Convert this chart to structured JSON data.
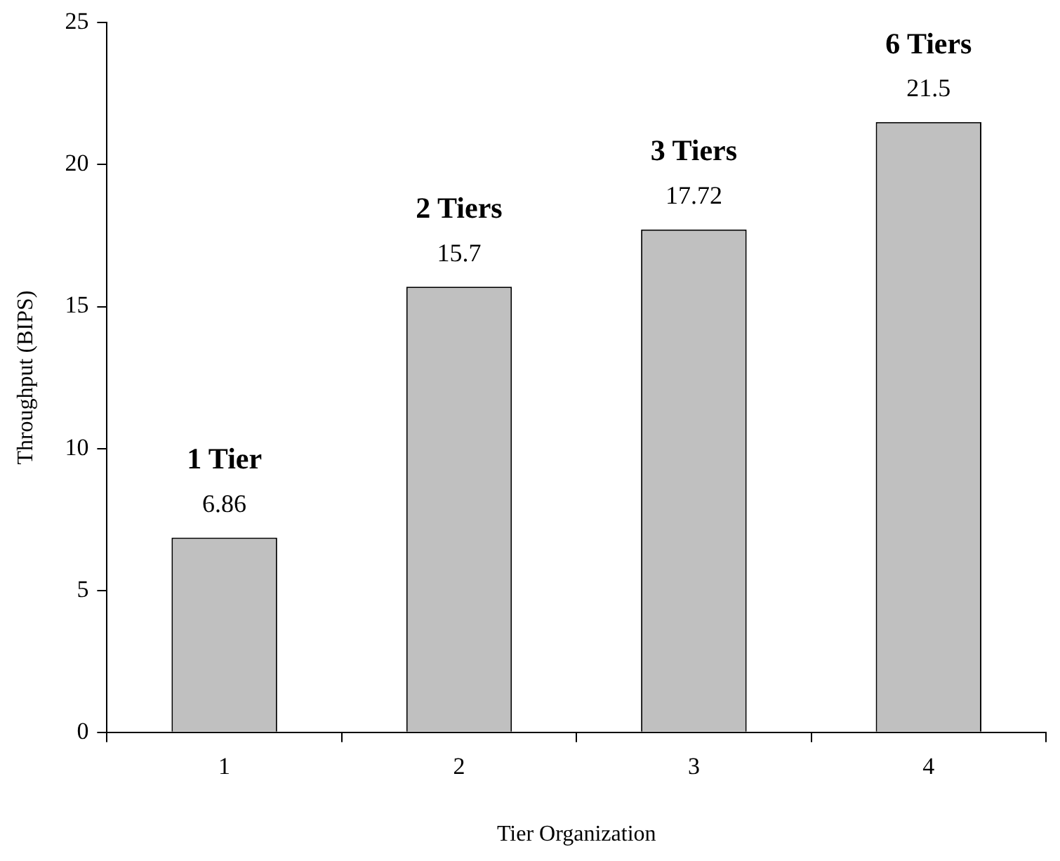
{
  "chart_data": {
    "type": "bar",
    "xlabel": "Tier Organization",
    "ylabel": "Throughput (BIPS)",
    "categories": [
      "1",
      "2",
      "3",
      "4"
    ],
    "values": [
      6.86,
      15.7,
      17.72,
      21.5
    ],
    "color": "#c0c0c0",
    "ylim": [
      0,
      25
    ],
    "yticks": [
      0,
      5,
      10,
      15,
      20,
      25
    ],
    "grid": false,
    "legend": false,
    "data_labels": true,
    "annotations": [
      {
        "text": "1 Tier",
        "x": "1",
        "y": 6.86
      },
      {
        "text": "2 Tiers",
        "x": "2",
        "y": 15.7
      },
      {
        "text": "3 Tiers",
        "x": "3",
        "y": 17.72
      },
      {
        "text": "6 Tiers",
        "x": "4",
        "y": 21.5
      }
    ]
  }
}
